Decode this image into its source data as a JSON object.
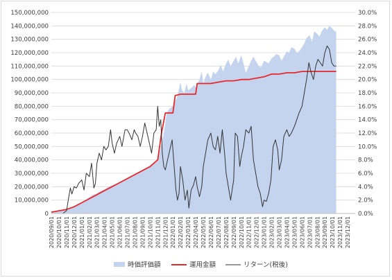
{
  "chart_data": {
    "type": "line",
    "x_labels": [
      "2020/09/01",
      "2020/10/01",
      "2020/11/01",
      "2020/12/01",
      "2021/01/01",
      "2021/02/01",
      "2021/03/01",
      "2021/04/01",
      "2021/05/01",
      "2021/06/01",
      "2021/07/01",
      "2021/08/01",
      "2021/09/01",
      "2021/10/01",
      "2021/11/01",
      "2021/12/01",
      "2022/01/01",
      "2022/02/01",
      "2022/03/01",
      "2022/04/01",
      "2022/05/01",
      "2022/06/01",
      "2022/07/01",
      "2022/08/01",
      "2022/09/01",
      "2022/10/01",
      "2022/11/01",
      "2022/12/01",
      "2023/01/01",
      "2023/02/01",
      "2023/03/01",
      "2023/04/01",
      "2023/05/01",
      "2023/06/01",
      "2023/07/01",
      "2023/08/01",
      "2023/09/01",
      "2023/10/01",
      "2023/11/01",
      "2023/12/01"
    ],
    "y_left": {
      "min": 0,
      "max": 150000000,
      "step": 10000000,
      "tick_labels": [
        "0",
        "10,000,000",
        "20,000,000",
        "30,000,000",
        "40,000,000",
        "50,000,000",
        "60,000,000",
        "70,000,000",
        "80,000,000",
        "90,000,000",
        "100,000,000",
        "110,000,000",
        "120,000,000",
        "130,000,000",
        "140,000,000",
        "150,000,000"
      ]
    },
    "y_right": {
      "min": 0,
      "max": 30,
      "step": 2,
      "tick_labels": [
        "0.0%",
        "2.0%",
        "4.0%",
        "6.0%",
        "8.0%",
        "10.0%",
        "12.0%",
        "14.0%",
        "16.0%",
        "18.0%",
        "20.0%",
        "22.0%",
        "24.0%",
        "26.0%",
        "28.0%",
        "30.0%"
      ]
    },
    "grid": "horizontal",
    "legend_position": "bottom",
    "colors": {
      "market_value": "#c5d4ee",
      "invested": "#e8272b",
      "return": "#333333"
    },
    "series": [
      {
        "name": "時価評価額",
        "kind": "area",
        "axis": "left",
        "points": [
          [
            0,
            1000000
          ],
          [
            0.5,
            1500000
          ],
          [
            1,
            2000000
          ],
          [
            1.5,
            3000000
          ],
          [
            2,
            3500000
          ],
          [
            2.5,
            4000000
          ],
          [
            3,
            5000000
          ],
          [
            3.5,
            7000000
          ],
          [
            4,
            8000000
          ],
          [
            4.5,
            10000000
          ],
          [
            5,
            12000000
          ],
          [
            5.5,
            14000000
          ],
          [
            6,
            15000000
          ],
          [
            6.5,
            17000000
          ],
          [
            7,
            18000000
          ],
          [
            7.5,
            20000000
          ],
          [
            8,
            21000000
          ],
          [
            8.5,
            22000000
          ],
          [
            9,
            23000000
          ],
          [
            9.5,
            25000000
          ],
          [
            10,
            26000000
          ],
          [
            10.5,
            28000000
          ],
          [
            11,
            29000000
          ],
          [
            11.5,
            31000000
          ],
          [
            12,
            32000000
          ],
          [
            12.5,
            34000000
          ],
          [
            13,
            35000000
          ],
          [
            13.5,
            37000000
          ],
          [
            14,
            39000000
          ],
          [
            14.2,
            45000000
          ],
          [
            14.5,
            52000000
          ],
          [
            14.8,
            60000000
          ],
          [
            15,
            68000000
          ],
          [
            15.2,
            75000000
          ],
          [
            15.5,
            78000000
          ],
          [
            16,
            80000000
          ],
          [
            16.2,
            83000000
          ],
          [
            16.5,
            86000000
          ],
          [
            16.8,
            93000000
          ],
          [
            17,
            98000000
          ],
          [
            17.2,
            92000000
          ],
          [
            17.5,
            90000000
          ],
          [
            17.8,
            97000000
          ],
          [
            18,
            92000000
          ],
          [
            18.5,
            94000000
          ],
          [
            18.8,
            96000000
          ],
          [
            19,
            94000000
          ],
          [
            19.5,
            100000000
          ],
          [
            19.8,
            106000000
          ],
          [
            20,
            97000000
          ],
          [
            20.3,
            102000000
          ],
          [
            20.6,
            105000000
          ],
          [
            21,
            100000000
          ],
          [
            21.3,
            106000000
          ],
          [
            21.6,
            104000000
          ],
          [
            22,
            107000000
          ],
          [
            22.3,
            111000000
          ],
          [
            22.6,
            106000000
          ],
          [
            23,
            112000000
          ],
          [
            23.3,
            115000000
          ],
          [
            23.6,
            110000000
          ],
          [
            24,
            114000000
          ],
          [
            24.3,
            117000000
          ],
          [
            24.6,
            112000000
          ],
          [
            25,
            118000000
          ],
          [
            25.3,
            112000000
          ],
          [
            25.6,
            105000000
          ],
          [
            26,
            110000000
          ],
          [
            26.3,
            114000000
          ],
          [
            26.6,
            117000000
          ],
          [
            27,
            113000000
          ],
          [
            27.3,
            110000000
          ],
          [
            27.6,
            109000000
          ],
          [
            28,
            114000000
          ],
          [
            28.3,
            113000000
          ],
          [
            28.6,
            112000000
          ],
          [
            29,
            116000000
          ],
          [
            29.3,
            117000000
          ],
          [
            29.6,
            119000000
          ],
          [
            30,
            118000000
          ],
          [
            30.3,
            114000000
          ],
          [
            30.6,
            117000000
          ],
          [
            31,
            121000000
          ],
          [
            31.3,
            120000000
          ],
          [
            31.6,
            124000000
          ],
          [
            32,
            123000000
          ],
          [
            32.3,
            120000000
          ],
          [
            32.6,
            121000000
          ],
          [
            33,
            124000000
          ],
          [
            33.3,
            127000000
          ],
          [
            33.6,
            131000000
          ],
          [
            34,
            133000000
          ],
          [
            34.3,
            128000000
          ],
          [
            34.6,
            136000000
          ],
          [
            35,
            134000000
          ],
          [
            35.3,
            132000000
          ],
          [
            35.6,
            136000000
          ],
          [
            36,
            139000000
          ],
          [
            36.3,
            137000000
          ],
          [
            36.6,
            140000000
          ],
          [
            37,
            138000000
          ],
          [
            37.3,
            136000000
          ],
          [
            37.5,
            136000000
          ]
        ]
      },
      {
        "name": "運用金額",
        "kind": "line",
        "axis": "left",
        "points": [
          [
            0,
            1000000
          ],
          [
            1,
            2000000
          ],
          [
            2,
            3000000
          ],
          [
            3,
            5000000
          ],
          [
            4,
            8000000
          ],
          [
            5,
            11000000
          ],
          [
            6,
            14000000
          ],
          [
            7,
            17000000
          ],
          [
            8,
            20000000
          ],
          [
            9,
            23000000
          ],
          [
            10,
            26000000
          ],
          [
            11,
            29000000
          ],
          [
            12,
            32000000
          ],
          [
            13,
            35000000
          ],
          [
            14,
            40000000
          ],
          [
            14.5,
            60000000
          ],
          [
            15,
            75000000
          ],
          [
            16,
            75000000
          ],
          [
            16.3,
            88000000
          ],
          [
            17,
            89000000
          ],
          [
            18,
            89000000
          ],
          [
            19,
            89000000
          ],
          [
            19.2,
            97000000
          ],
          [
            20,
            97000000
          ],
          [
            21,
            97000000
          ],
          [
            22,
            98000000
          ],
          [
            23,
            99000000
          ],
          [
            24,
            99000000
          ],
          [
            25,
            100000000
          ],
          [
            26,
            100000000
          ],
          [
            27,
            101000000
          ],
          [
            28,
            102000000
          ],
          [
            29,
            104000000
          ],
          [
            30,
            104000000
          ],
          [
            31,
            105000000
          ],
          [
            32,
            105000000
          ],
          [
            33,
            106000000
          ],
          [
            34,
            106000000
          ],
          [
            35,
            106000000
          ],
          [
            36,
            106000000
          ],
          [
            37,
            106000000
          ],
          [
            37.5,
            106000000
          ]
        ]
      },
      {
        "name": "リターン(税後)",
        "kind": "line",
        "axis": "right",
        "points": [
          [
            0,
            0
          ],
          [
            1,
            0
          ],
          [
            1.5,
            0
          ],
          [
            2,
            0.4
          ],
          [
            2.3,
            2.5
          ],
          [
            2.5,
            3.8
          ],
          [
            2.7,
            2.9
          ],
          [
            3,
            4.0
          ],
          [
            3.3,
            3.8
          ],
          [
            3.6,
            4.5
          ],
          [
            4,
            5.0
          ],
          [
            4.3,
            3.5
          ],
          [
            4.6,
            6.0
          ],
          [
            5,
            5.5
          ],
          [
            5.3,
            7.5
          ],
          [
            5.6,
            3.8
          ],
          [
            5.8,
            4.5
          ],
          [
            6,
            7.5
          ],
          [
            6.3,
            9.0
          ],
          [
            6.6,
            8.0
          ],
          [
            6.9,
            10.0
          ],
          [
            7.2,
            9.5
          ],
          [
            7.5,
            10.0
          ],
          [
            7.8,
            12.5
          ],
          [
            8,
            10.5
          ],
          [
            8.3,
            9.0
          ],
          [
            8.6,
            10.5
          ],
          [
            9,
            11.5
          ],
          [
            9.3,
            10.0
          ],
          [
            9.7,
            12.5
          ],
          [
            10,
            12.5
          ],
          [
            10.3,
            11.8
          ],
          [
            10.6,
            11.0
          ],
          [
            10.9,
            12.5
          ],
          [
            11.1,
            12.0
          ],
          [
            11.4,
            11.5
          ],
          [
            11.7,
            10.0
          ],
          [
            12,
            11.5
          ],
          [
            12.3,
            13.5
          ],
          [
            12.6,
            12.0
          ],
          [
            12.9,
            10.5
          ],
          [
            13.2,
            9.0
          ],
          [
            13.5,
            12.0
          ],
          [
            13.8,
            12.5
          ],
          [
            14,
            16.0
          ],
          [
            14.2,
            13.0
          ],
          [
            14.4,
            14.0
          ],
          [
            14.6,
            9.0
          ],
          [
            14.8,
            7.0
          ],
          [
            15,
            6.5
          ],
          [
            15.3,
            8.0
          ],
          [
            15.6,
            9.5
          ],
          [
            15.9,
            11.0
          ],
          [
            16.1,
            8.0
          ],
          [
            16.4,
            3.5
          ],
          [
            16.6,
            2.0
          ],
          [
            16.8,
            3.0
          ],
          [
            17,
            7.0
          ],
          [
            17.3,
            5.0
          ],
          [
            17.6,
            2.0
          ],
          [
            17.9,
            3.5
          ],
          [
            18.1,
            0.8
          ],
          [
            18.4,
            3.5
          ],
          [
            18.7,
            4.2
          ],
          [
            19,
            5.5
          ],
          [
            19.2,
            4.0
          ],
          [
            19.5,
            2.5
          ],
          [
            19.8,
            4.0
          ],
          [
            20,
            7.0
          ],
          [
            20.3,
            9.0
          ],
          [
            20.6,
            11.0
          ],
          [
            21,
            12.0
          ],
          [
            21.3,
            10.0
          ],
          [
            21.6,
            9.5
          ],
          [
            21.9,
            11.5
          ],
          [
            22.2,
            9.0
          ],
          [
            22.5,
            12.5
          ],
          [
            22.8,
            9.0
          ],
          [
            23,
            6.0
          ],
          [
            23.3,
            4.0
          ],
          [
            23.6,
            2.0
          ],
          [
            24,
            5.0
          ],
          [
            24.2,
            12.0
          ],
          [
            24.5,
            11.5
          ],
          [
            24.8,
            7.0
          ],
          [
            25,
            8.5
          ],
          [
            25.3,
            10.0
          ],
          [
            25.6,
            12.5
          ],
          [
            26,
            12.0
          ],
          [
            26.3,
            13.0
          ],
          [
            26.6,
            8.0
          ],
          [
            26.9,
            6.0
          ],
          [
            27.2,
            4.0
          ],
          [
            27.5,
            3.0
          ],
          [
            27.8,
            1.0
          ],
          [
            28,
            2.0
          ],
          [
            28.3,
            1.8
          ],
          [
            28.6,
            3.0
          ],
          [
            28.9,
            5.0
          ],
          [
            29.2,
            10.0
          ],
          [
            29.5,
            11.0
          ],
          [
            29.8,
            9.5
          ],
          [
            30,
            6.5
          ],
          [
            30.3,
            8.0
          ],
          [
            30.6,
            11.5
          ],
          [
            31,
            12.5
          ],
          [
            31.3,
            11.5
          ],
          [
            31.6,
            12.0
          ],
          [
            32,
            13.0
          ],
          [
            32.3,
            14.0
          ],
          [
            32.6,
            15.0
          ],
          [
            33,
            16.0
          ],
          [
            33.3,
            18.0
          ],
          [
            33.6,
            20.0
          ],
          [
            33.9,
            22.5
          ],
          [
            34.2,
            21.0
          ],
          [
            34.5,
            20.0
          ],
          [
            34.8,
            22.0
          ],
          [
            35.1,
            23.0
          ],
          [
            35.4,
            22.5
          ],
          [
            35.7,
            22.0
          ],
          [
            36,
            24.0
          ],
          [
            36.3,
            25.0
          ],
          [
            36.6,
            24.5
          ],
          [
            36.9,
            22.5
          ],
          [
            37.2,
            22.0
          ],
          [
            37.5,
            22.0
          ]
        ]
      }
    ]
  }
}
